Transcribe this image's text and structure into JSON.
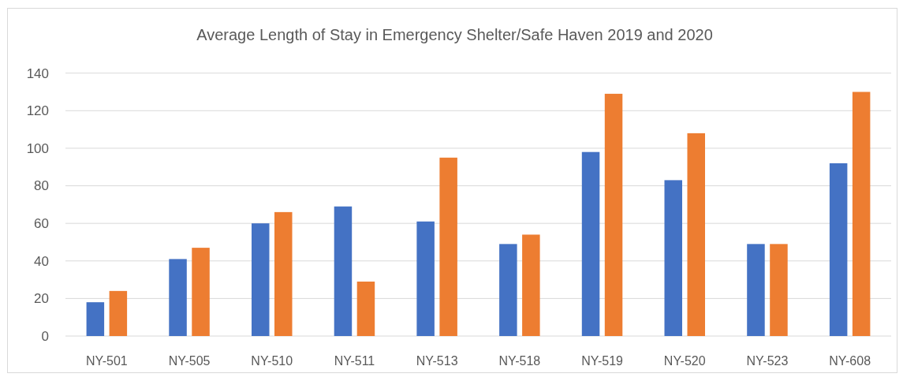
{
  "chart_data": {
    "type": "bar",
    "title": "Average Length of Stay in Emergency Shelter/Safe Haven 2019 and 2020",
    "categories": [
      "NY-501",
      "NY-505",
      "NY-510",
      "NY-511",
      "NY-513",
      "NY-518",
      "NY-519",
      "NY-520",
      "NY-523",
      "NY-608"
    ],
    "series": [
      {
        "color": "#4472c4",
        "values": [
          18,
          41,
          60,
          69,
          61,
          49,
          98,
          83,
          49,
          92
        ]
      },
      {
        "color": "#ed7d31",
        "values": [
          24,
          47,
          66,
          29,
          95,
          54,
          129,
          108,
          49,
          130
        ]
      }
    ],
    "ylim": [
      0,
      140
    ],
    "yticks": [
      0,
      20,
      40,
      60,
      80,
      100,
      120,
      140
    ],
    "grid": "y"
  }
}
